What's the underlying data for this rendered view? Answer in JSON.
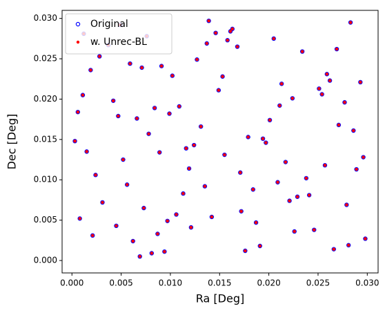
{
  "chart_data": {
    "type": "scatter",
    "x_label": "Ra [Deg]",
    "y_label": "Dec [Deg]",
    "xlim": [
      -0.001,
      0.0311
    ],
    "ylim": [
      -0.00154,
      0.031
    ],
    "xticks": [
      {
        "value": 0,
        "label": "0.000"
      },
      {
        "value": 0.005,
        "label": "0.005"
      },
      {
        "value": 0.01,
        "label": "0.010"
      },
      {
        "value": 0.015,
        "label": "0.015"
      },
      {
        "value": 0.02,
        "label": "0.020"
      },
      {
        "value": 0.025,
        "label": "0.025"
      },
      {
        "value": 0.03,
        "label": "0.030"
      }
    ],
    "yticks": [
      {
        "value": 0,
        "label": "0.000"
      },
      {
        "value": 0.005,
        "label": "0.005"
      },
      {
        "value": 0.01,
        "label": "0.010"
      },
      {
        "value": 0.015,
        "label": "0.015"
      },
      {
        "value": 0.02,
        "label": "0.020"
      },
      {
        "value": 0.025,
        "label": "0.025"
      },
      {
        "value": 0.03,
        "label": "0.030"
      }
    ],
    "grid": false,
    "legend": "upper-left",
    "series": [
      {
        "name": "Original",
        "color": "#0000ff",
        "marker": "hollow",
        "x": [
          0.0012,
          0.0045,
          0.0078,
          0.0102,
          0.0135,
          0.0168,
          0.0191,
          0.0224,
          0.0257,
          0.0283,
          0.0006,
          0.0031,
          0.0059,
          0.0087,
          0.0116,
          0.0149,
          0.0172,
          0.0205,
          0.0238,
          0.0271,
          0.0298,
          0.0019,
          0.0052,
          0.0081,
          0.0109,
          0.0142,
          0.0163,
          0.0197,
          0.0229,
          0.0262,
          0.0289,
          0.0008,
          0.0037,
          0.0066,
          0.0094,
          0.0127,
          0.0155,
          0.0184,
          0.0213,
          0.0246,
          0.0277,
          0.0024,
          0.0049,
          0.0073,
          0.0099,
          0.0121,
          0.0158,
          0.0179,
          0.0209,
          0.0234,
          0.0266,
          0.0293,
          0.0015,
          0.0042,
          0.0069,
          0.0091,
          0.0131,
          0.0146,
          0.0187,
          0.0217,
          0.0251,
          0.0279,
          0.0003,
          0.0028,
          0.0062,
          0.0084,
          0.0113,
          0.0139,
          0.0171,
          0.0201,
          0.0226,
          0.0259,
          0.0286,
          0.0011,
          0.0056,
          0.0076,
          0.0106,
          0.0124,
          0.0153,
          0.0176,
          0.0211,
          0.0241,
          0.0269,
          0.0296,
          0.0021,
          0.0047,
          0.0071,
          0.0097,
          0.0119,
          0.0161,
          0.0194,
          0.0221,
          0.0254,
          0.0281,
          0.0137,
          0.0089
        ],
        "values": [
          0.0281,
          0.0043,
          0.0157,
          0.0229,
          0.0092,
          0.0265,
          0.0018,
          0.0201,
          0.0118,
          0.0295,
          0.0184,
          0.0072,
          0.0244,
          0.0033,
          0.0139,
          0.0211,
          0.0061,
          0.0275,
          0.0102,
          0.0168,
          0.0027,
          0.0236,
          0.0125,
          0.0009,
          0.0191,
          0.0054,
          0.0287,
          0.0146,
          0.0079,
          0.0223,
          0.0113,
          0.0052,
          0.0267,
          0.0176,
          0.0011,
          0.0249,
          0.0131,
          0.0088,
          0.0219,
          0.0038,
          0.0196,
          0.0106,
          0.0292,
          0.0065,
          0.0182,
          0.0041,
          0.0273,
          0.0153,
          0.0097,
          0.0259,
          0.0014,
          0.0221,
          0.0135,
          0.0198,
          0.0005,
          0.0241,
          0.0166,
          0.0282,
          0.0047,
          0.0122,
          0.0213,
          0.0069,
          0.0148,
          0.0253,
          0.0024,
          0.0189,
          0.0083,
          0.0297,
          0.0109,
          0.0174,
          0.0036,
          0.0231,
          0.0161,
          0.0205,
          0.0094,
          0.0278,
          0.0057,
          0.0143,
          0.0228,
          0.0012,
          0.0192,
          0.0081,
          0.0262,
          0.0128,
          0.0031,
          0.0179,
          0.0239,
          0.0049,
          0.0114,
          0.0284,
          0.0151,
          0.0074,
          0.0206,
          0.0019,
          0.0269,
          0.0134
        ]
      },
      {
        "name": "w. Unrec-BL",
        "color": "#ff0000",
        "marker": "filled",
        "x": [
          0.0012,
          0.0045,
          0.0078,
          0.0102,
          0.0135,
          0.0168,
          0.0191,
          0.0224,
          0.0257,
          0.0283,
          0.0006,
          0.0031,
          0.0059,
          0.0087,
          0.0116,
          0.0149,
          0.0172,
          0.0205,
          0.0238,
          0.0271,
          0.0298,
          0.0019,
          0.0052,
          0.0081,
          0.0109,
          0.0142,
          0.0163,
          0.0197,
          0.0229,
          0.0262,
          0.0289,
          0.0008,
          0.0037,
          0.0066,
          0.0094,
          0.0127,
          0.0155,
          0.0184,
          0.0213,
          0.0246,
          0.0277,
          0.0024,
          0.0049,
          0.0073,
          0.0099,
          0.0121,
          0.0158,
          0.0179,
          0.0209,
          0.0234,
          0.0266,
          0.0293,
          0.0015,
          0.0042,
          0.0069,
          0.0091,
          0.0131,
          0.0146,
          0.0187,
          0.0217,
          0.0251,
          0.0279,
          0.0003,
          0.0028,
          0.0062,
          0.0084,
          0.0113,
          0.0139,
          0.0171,
          0.0201,
          0.0226,
          0.0259,
          0.0286,
          0.0011,
          0.0056,
          0.0076,
          0.0106,
          0.0124,
          0.0153,
          0.0176,
          0.0211,
          0.0241,
          0.0269,
          0.0296,
          0.0021,
          0.0047,
          0.0071,
          0.0097,
          0.0119,
          0.0161,
          0.0194,
          0.0221,
          0.0254,
          0.0281,
          0.0137,
          0.0089
        ],
        "values": [
          0.0281,
          0.0043,
          0.0157,
          0.0229,
          0.0092,
          0.0265,
          0.0018,
          0.0201,
          0.0118,
          0.0295,
          0.0184,
          0.0072,
          0.0244,
          0.0033,
          0.0139,
          0.0211,
          0.0061,
          0.0275,
          0.0102,
          0.0168,
          0.0027,
          0.0236,
          0.0125,
          0.0009,
          0.0191,
          0.0054,
          0.0287,
          0.0146,
          0.0079,
          0.0223,
          0.0113,
          0.0052,
          0.0267,
          0.0176,
          0.0011,
          0.0249,
          0.0131,
          0.0088,
          0.0219,
          0.0038,
          0.0196,
          0.0106,
          0.0292,
          0.0065,
          0.0182,
          0.0041,
          0.0273,
          0.0153,
          0.0097,
          0.0259,
          0.0014,
          0.0221,
          0.0135,
          0.0198,
          0.0005,
          0.0241,
          0.0166,
          0.0282,
          0.0047,
          0.0122,
          0.0213,
          0.0069,
          0.0148,
          0.0253,
          0.0024,
          0.0189,
          0.0083,
          0.0297,
          0.0109,
          0.0174,
          0.0036,
          0.0231,
          0.0161,
          0.0205,
          0.0094,
          0.0278,
          0.0057,
          0.0143,
          0.0228,
          0.0012,
          0.0192,
          0.0081,
          0.0262,
          0.0128,
          0.0031,
          0.0179,
          0.0239,
          0.0049,
          0.0114,
          0.0284,
          0.0151,
          0.0074,
          0.0206,
          0.0019,
          0.0269,
          0.0134
        ]
      }
    ]
  }
}
